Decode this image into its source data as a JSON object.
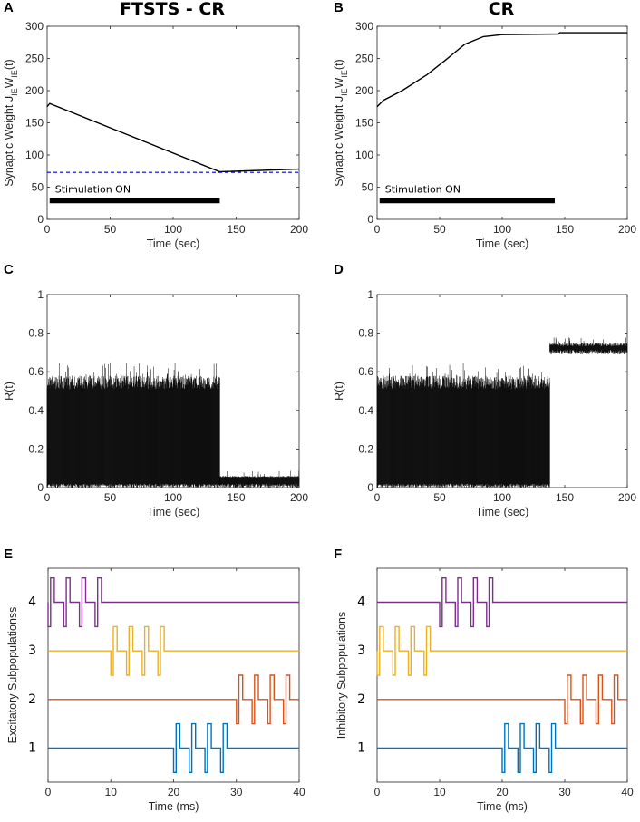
{
  "chart_data": [
    {
      "panel": "A",
      "title": "FTSTS - CR",
      "type": "line",
      "xlabel": "Time (sec)",
      "ylabel": "Synaptic Weight J_IE W_IE(t)",
      "xlim": [
        0,
        200
      ],
      "ylim": [
        0,
        300
      ],
      "xticks": [
        "0",
        "50",
        "100",
        "150",
        "200"
      ],
      "yticks": [
        "0",
        "50",
        "100",
        "150",
        "200",
        "250",
        "300"
      ],
      "series": [
        {
          "color": "#000000",
          "style": "solid",
          "x": [
            0,
            2,
            137,
            200
          ],
          "y": [
            175,
            180,
            74,
            78
          ]
        },
        {
          "color": "#0000CC",
          "style": "dashed",
          "x": [
            0,
            200
          ],
          "y": [
            73,
            73
          ]
        }
      ],
      "annotation": {
        "text": "Stimulation ON",
        "bar_x": [
          2,
          137
        ],
        "bar_y": [
          25,
          33
        ]
      }
    },
    {
      "panel": "B",
      "title": "CR",
      "type": "line",
      "xlabel": "Time (sec)",
      "ylabel": "Synaptic Weight J_IE W_IE(t)",
      "xlim": [
        0,
        200
      ],
      "ylim": [
        0,
        300
      ],
      "xticks": [
        "0",
        "50",
        "100",
        "150",
        "200"
      ],
      "yticks": [
        "0",
        "50",
        "100",
        "150",
        "200",
        "250",
        "300"
      ],
      "series": [
        {
          "color": "#000000",
          "style": "solid",
          "x": [
            0,
            5,
            20,
            40,
            55,
            70,
            85,
            100,
            145,
            146,
            200
          ],
          "y": [
            175,
            185,
            200,
            225,
            248,
            272,
            284,
            287,
            288,
            290,
            290
          ]
        }
      ],
      "annotation": {
        "text": "Stimulation ON",
        "bar_x": [
          2,
          142
        ],
        "bar_y": [
          25,
          33
        ]
      }
    },
    {
      "panel": "C",
      "title": "",
      "type": "line",
      "xlabel": "Time (sec)",
      "ylabel": "R(t)",
      "xlim": [
        0,
        200
      ],
      "ylim": [
        0,
        1
      ],
      "xticks": [
        "0",
        "50",
        "100",
        "150",
        "200"
      ],
      "yticks": [
        "0",
        "0.2",
        "0.4",
        "0.6",
        "0.8",
        "1"
      ],
      "series": [
        {
          "color": "#000000",
          "segments": [
            {
              "x": [
                0,
                137
              ],
              "min": 0.0,
              "typ_max": 0.58,
              "peak": 0.65
            },
            {
              "x": [
                137,
                200
              ],
              "min": 0.0,
              "typ_max": 0.06,
              "peak": 0.09
            }
          ]
        }
      ]
    },
    {
      "panel": "D",
      "title": "",
      "type": "line",
      "xlabel": "Time (sec)",
      "ylabel": "R(t)",
      "xlim": [
        0,
        200
      ],
      "ylim": [
        0,
        1
      ],
      "xticks": [
        "0",
        "50",
        "100",
        "150",
        "200"
      ],
      "yticks": [
        "0",
        "0.2",
        "0.4",
        "0.6",
        "0.8",
        "1"
      ],
      "series": [
        {
          "color": "#000000",
          "segments": [
            {
              "x": [
                0,
                138
              ],
              "min": 0.0,
              "typ_max": 0.58,
              "peak": 0.65
            },
            {
              "x": [
                138,
                200
              ],
              "min": 0.69,
              "typ_max": 0.75,
              "peak": 0.78
            }
          ]
        }
      ]
    },
    {
      "panel": "E",
      "title": "",
      "type": "line",
      "xlabel": "Time (ms)",
      "ylabel": "Excitatory Subpopulationss",
      "xlim": [
        0,
        40
      ],
      "ylim": [
        0.3,
        4.7
      ],
      "xticks": [
        "0",
        "10",
        "20",
        "30",
        "40"
      ],
      "yticks": [
        "1",
        "2",
        "3",
        "4"
      ],
      "pulse": {
        "count": 4,
        "period_ms": 2.5,
        "neg_width_ms": 0.4,
        "pos_width_ms": 0.6,
        "amplitude": 0.5
      },
      "series": [
        {
          "name": "1",
          "color": "#0072BD",
          "onset_ms": 20
        },
        {
          "name": "2",
          "color": "#D95319",
          "onset_ms": 30
        },
        {
          "name": "3",
          "color": "#EDB120",
          "onset_ms": 10
        },
        {
          "name": "4",
          "color": "#7E2F8E",
          "onset_ms": 0
        }
      ]
    },
    {
      "panel": "F",
      "title": "",
      "type": "line",
      "xlabel": "Time (ms)",
      "ylabel": "Inhibitory Subpopulations",
      "xlim": [
        0,
        40
      ],
      "ylim": [
        0.3,
        4.7
      ],
      "xticks": [
        "0",
        "10",
        "20",
        "30",
        "40"
      ],
      "yticks": [
        "1",
        "2",
        "3",
        "4"
      ],
      "pulse": {
        "count": 4,
        "period_ms": 2.5,
        "neg_width_ms": 0.4,
        "pos_width_ms": 0.6,
        "amplitude": 0.5
      },
      "series": [
        {
          "name": "1",
          "color": "#0072BD",
          "onset_ms": 20
        },
        {
          "name": "2",
          "color": "#D95319",
          "onset_ms": 30
        },
        {
          "name": "3",
          "color": "#EDB120",
          "onset_ms": 0
        },
        {
          "name": "4",
          "color": "#7E2F8E",
          "onset_ms": 10
        }
      ]
    }
  ]
}
